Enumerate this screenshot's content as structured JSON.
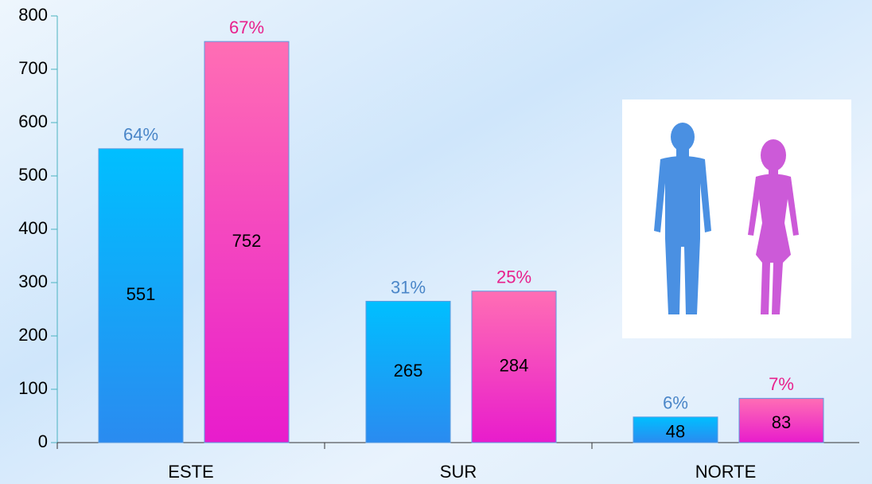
{
  "chart_data": {
    "type": "bar",
    "categories": [
      "ESTE",
      "SUR",
      "NORTE"
    ],
    "series": [
      {
        "color": "#00bfff",
        "color_bottom": "#2a8bf0",
        "label_color": "#4a86c8",
        "values": [
          551,
          265,
          48
        ],
        "share_labels": [
          "64%",
          "31%",
          "6%"
        ]
      },
      {
        "color": "#ff6eb4",
        "color_bottom": "#e81ccc",
        "label_color": "#e8208c",
        "values": [
          752,
          284,
          83
        ],
        "share_labels": [
          "67%",
          "25%",
          "7%"
        ]
      }
    ],
    "ylim": [
      0,
      800
    ],
    "yticks": [
      0,
      100,
      200,
      300,
      400,
      500,
      600,
      700,
      800
    ],
    "grid": false
  }
}
